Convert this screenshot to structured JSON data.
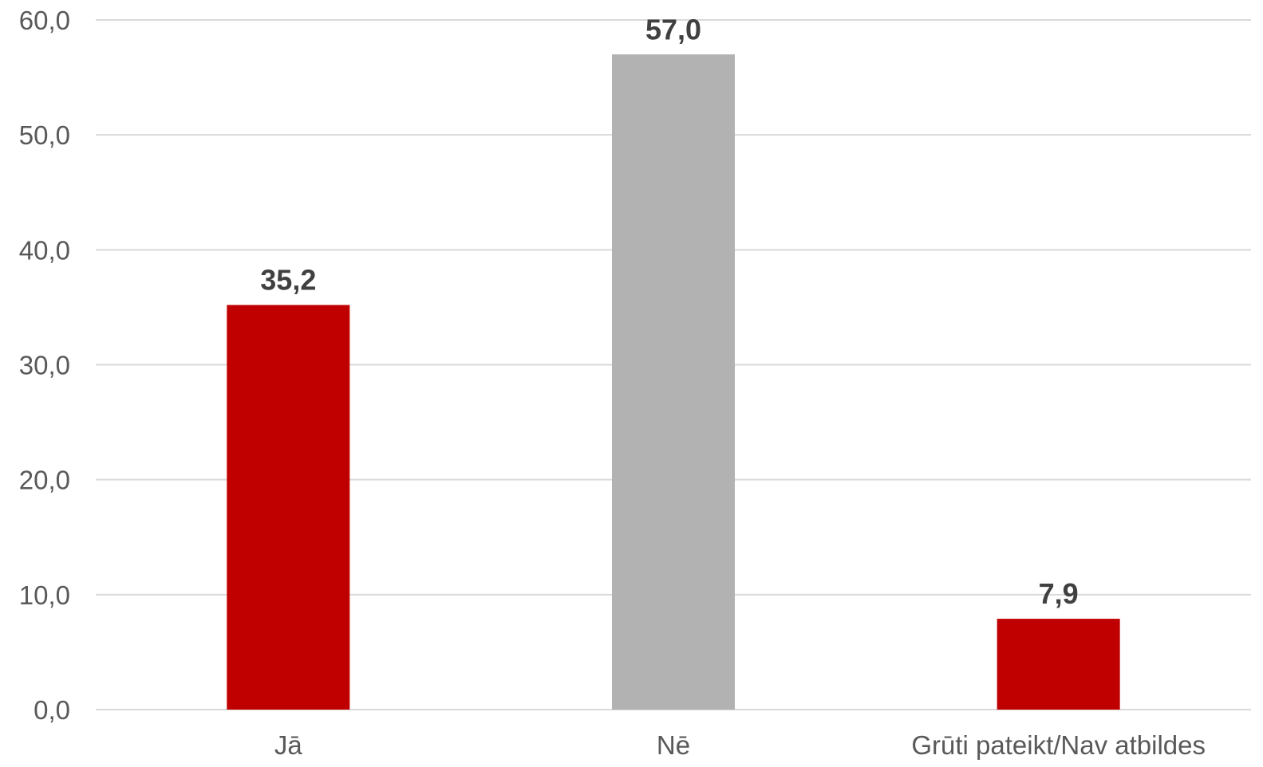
{
  "chart_data": {
    "type": "bar",
    "title": "",
    "xlabel": "",
    "ylabel": "",
    "categories": [
      "Jā",
      "Nē",
      "Grūti pateikt/Nav atbildes"
    ],
    "values": [
      35.2,
      57.0,
      7.9
    ],
    "value_labels": [
      "35,2",
      "57,0",
      "7,9"
    ],
    "bar_colors": [
      "#c00000",
      "#b2b2b2",
      "#c00000"
    ],
    "ylim": [
      0,
      60
    ],
    "y_ticks": [
      0,
      10,
      20,
      30,
      40,
      50,
      60
    ],
    "y_tick_labels": [
      "0,0",
      "10,0",
      "20,0",
      "30,0",
      "40,0",
      "50,0",
      "60,0"
    ],
    "grid": true,
    "legend": "none"
  }
}
